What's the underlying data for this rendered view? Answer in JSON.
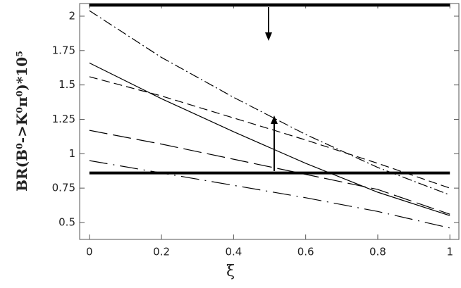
{
  "chart_data": {
    "type": "line",
    "x_label": "ξ",
    "y_label": "BR(B⁰->K⁰π⁰)*10⁵",
    "x": [
      0,
      0.2,
      0.4,
      0.6,
      0.8,
      1
    ],
    "series": [
      {
        "color": "#000000",
        "dash": "none",
        "values": [
          1.66,
          1.4,
          1.16,
          0.93,
          0.72,
          0.55
        ]
      },
      {
        "color": "#000000",
        "dash": "14,4,2,4",
        "values": [
          2.04,
          1.7,
          1.41,
          1.14,
          0.9,
          0.7
        ]
      },
      {
        "color": "#000000",
        "dash": "12,6",
        "values": [
          1.56,
          1.42,
          1.26,
          1.1,
          0.93,
          0.75
        ]
      },
      {
        "color": "#000000",
        "dash": "26,8",
        "values": [
          1.17,
          1.07,
          0.96,
          0.85,
          0.74,
          0.56
        ]
      },
      {
        "color": "#000000",
        "dash": "26,8,2,8",
        "values": [
          0.95,
          0.86,
          0.77,
          0.68,
          0.58,
          0.46
        ]
      }
    ],
    "hlines": [
      2.08,
      0.86
    ],
    "xlim": [
      -0.027,
      1.025
    ],
    "ylim": [
      0.377,
      2.092
    ],
    "xticks": [
      0,
      0.2,
      0.4,
      0.6,
      0.8,
      1
    ],
    "yticks": [
      0.5,
      0.75,
      1,
      1.25,
      1.5,
      1.75,
      2
    ]
  }
}
